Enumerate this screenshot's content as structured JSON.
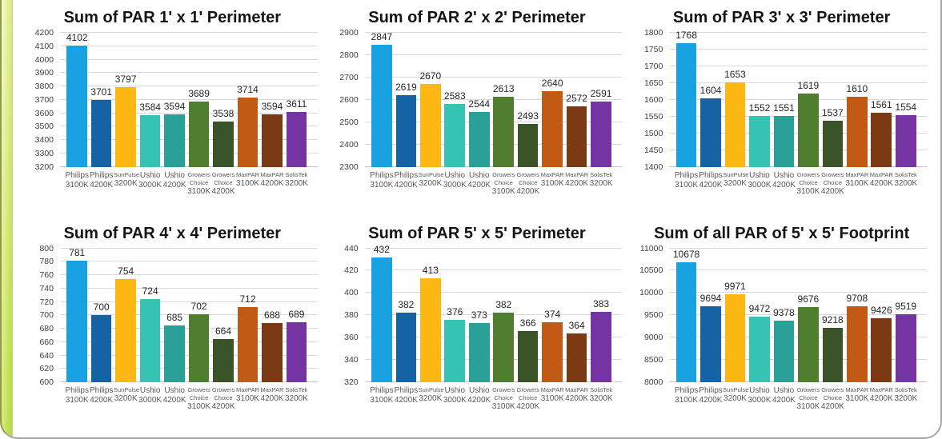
{
  "frame": {
    "background": "#FFFFFF",
    "border_color": "#A6A6A6",
    "accent_strip_from": "#F4FACC",
    "accent_strip_to": "#B5D838"
  },
  "palette": {
    "bar_colors": [
      "#18A2E2",
      "#1563A5",
      "#FCB713",
      "#36C3B4",
      "#2AA198",
      "#4E7E2E",
      "#3A5328",
      "#C05A15",
      "#7B3A13",
      "#7434A2"
    ],
    "grid_color": "#D9D9D9",
    "title_color": "#151515",
    "tick_label_color": "#404040",
    "category_label_color": "#595959",
    "data_label_color": "#262626"
  },
  "category_labels": [
    {
      "brand": "Philips",
      "temp": "3100K",
      "small": false
    },
    {
      "brand": "Philips",
      "temp": "4200K",
      "small": false
    },
    {
      "brand": "SunPulse",
      "temp": "3200K",
      "small": true
    },
    {
      "brand": "Ushio",
      "temp": "3000K",
      "small": false
    },
    {
      "brand": "Ushio",
      "temp": "4200K",
      "small": false
    },
    {
      "brand": "Growers Choice",
      "temp": "3100K",
      "small": true
    },
    {
      "brand": "Growers Choice",
      "temp": "4200K",
      "small": true
    },
    {
      "brand": "MaxPAR",
      "temp": "3100K",
      "small": true
    },
    {
      "brand": "MaxPAR",
      "temp": "4200K",
      "small": true
    },
    {
      "brand": "SolisTek",
      "temp": "3200K",
      "small": true
    }
  ],
  "chart_data": [
    {
      "type": "bar",
      "title": "Sum of PAR 1' x 1' Perimeter",
      "categories": [
        "Philips 3100K",
        "Philips 4200K",
        "SunPulse 3200K",
        "Ushio 3000K",
        "Ushio 4200K",
        "Growers Choice 3100K",
        "Growers Choice 4200K",
        "MaxPAR 3100K",
        "MaxPAR 4200K",
        "SolisTek 3200K"
      ],
      "values": [
        4102,
        3701,
        3797,
        3584,
        3594,
        3689,
        3538,
        3714,
        3594,
        3611
      ],
      "ylim": [
        3200,
        4200
      ],
      "ytick_step": 100,
      "grid": true,
      "legend": null,
      "data_labels": true
    },
    {
      "type": "bar",
      "title": "Sum of PAR 2' x 2' Perimeter",
      "categories": [
        "Philips 3100K",
        "Philips 4200K",
        "SunPulse 3200K",
        "Ushio 3000K",
        "Ushio 4200K",
        "Growers Choice 3100K",
        "Growers Choice 4200K",
        "MaxPAR 3100K",
        "MaxPAR 4200K",
        "SolisTek 3200K"
      ],
      "values": [
        2847,
        2619,
        2670,
        2583,
        2544,
        2613,
        2493,
        2640,
        2572,
        2591
      ],
      "ylim": [
        2300,
        2900
      ],
      "ytick_step": 100,
      "grid": true,
      "legend": null,
      "data_labels": true
    },
    {
      "type": "bar",
      "title": "Sum of PAR 3' x 3' Perimeter",
      "categories": [
        "Philips 3100K",
        "Philips 4200K",
        "SunPulse 3200K",
        "Ushio 3000K",
        "Ushio 4200K",
        "Growers Choice 3100K",
        "Growers Choice 4200K",
        "MaxPAR 3100K",
        "MaxPAR 4200K",
        "SolisTek 3200K"
      ],
      "values": [
        1768,
        1604,
        1653,
        1552,
        1551,
        1619,
        1537,
        1610,
        1561,
        1554
      ],
      "ylim": [
        1400,
        1800
      ],
      "ytick_step": 50,
      "grid": true,
      "legend": null,
      "data_labels": true
    },
    {
      "type": "bar",
      "title": "Sum of PAR 4' x 4' Perimeter",
      "categories": [
        "Philips 3100K",
        "Philips 4200K",
        "SunPulse 3200K",
        "Ushio 3000K",
        "Ushio 4200K",
        "Growers Choice 3100K",
        "Growers Choice 4200K",
        "MaxPAR 3100K",
        "MaxPAR 4200K",
        "SolisTek 3200K"
      ],
      "values": [
        781,
        700,
        754,
        724,
        685,
        702,
        664,
        712,
        688,
        689
      ],
      "ylim": [
        600,
        800
      ],
      "ytick_step": 20,
      "grid": true,
      "legend": null,
      "data_labels": true
    },
    {
      "type": "bar",
      "title": "Sum of PAR 5' x 5' Perimeter",
      "categories": [
        "Philips 3100K",
        "Philips 4200K",
        "SunPulse 3200K",
        "Ushio 3000K",
        "Ushio 4200K",
        "Growers Choice 3100K",
        "Growers Choice 4200K",
        "MaxPAR 3100K",
        "MaxPAR 4200K",
        "SolisTek 3200K"
      ],
      "values": [
        432,
        382,
        413,
        376,
        373,
        382,
        366,
        374,
        364,
        383
      ],
      "ylim": [
        320,
        440
      ],
      "ytick_step": 20,
      "grid": true,
      "legend": null,
      "data_labels": true
    },
    {
      "type": "bar",
      "title": "Sum of all PAR of 5' x 5' Footprint",
      "categories": [
        "Philips 3100K",
        "Philips 4200K",
        "SunPulse 3200K",
        "Ushio 3000K",
        "Ushio 4200K",
        "Growers Choice 3100K",
        "Growers Choice 4200K",
        "MaxPAR 3100K",
        "MaxPAR 4200K",
        "SolisTek 3200K"
      ],
      "values": [
        10678,
        9694,
        9971,
        9472,
        9378,
        9676,
        9218,
        9708,
        9426,
        9519
      ],
      "ylim": [
        8000,
        11000
      ],
      "ytick_step": 500,
      "grid": true,
      "legend": null,
      "data_labels": true
    }
  ]
}
